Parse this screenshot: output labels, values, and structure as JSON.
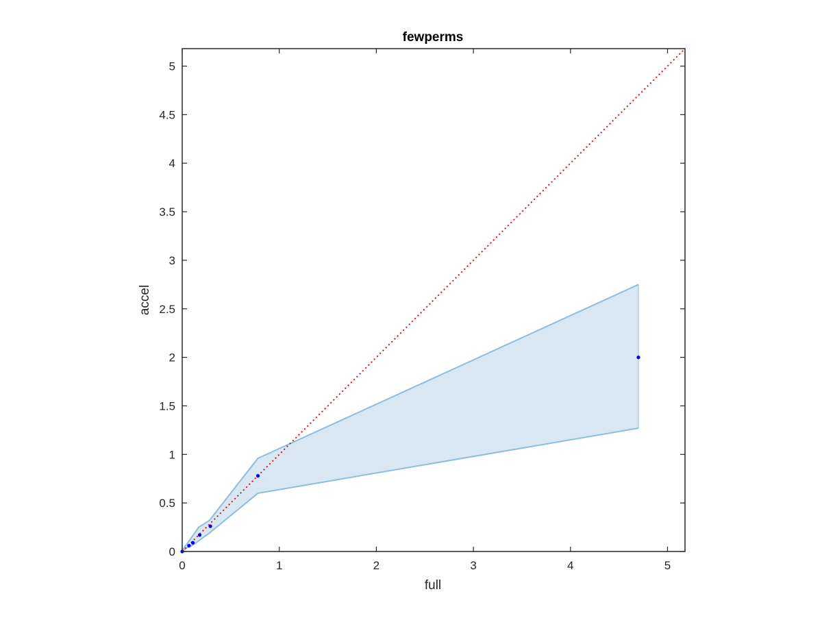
{
  "chart_data": {
    "type": "line",
    "title": "fewperms",
    "xlabel": "full",
    "ylabel": "accel",
    "xlim": [
      0,
      5.18
    ],
    "ylim": [
      0,
      5.18
    ],
    "xticks": [
      "0",
      "1",
      "2",
      "3",
      "4",
      "5"
    ],
    "xtick_values": [
      0,
      1,
      2,
      3,
      4,
      5
    ],
    "yticks": [
      "0",
      "0.5",
      "1",
      "1.5",
      "2",
      "2.5",
      "3",
      "3.5",
      "4",
      "4.5",
      "5"
    ],
    "ytick_values": [
      0,
      0.5,
      1,
      1.5,
      2,
      2.5,
      3,
      3.5,
      4,
      4.5,
      5
    ],
    "grid": false,
    "series": [
      {
        "kind": "band",
        "color": "#8bbde0",
        "fill": "#d9e7f3",
        "x": [
          0,
          0.05,
          0.1,
          0.17,
          0.28,
          0.78,
          4.7
        ],
        "upper": [
          0.01,
          0.08,
          0.15,
          0.25,
          0.32,
          0.96,
          2.75
        ],
        "lower": [
          0,
          0.04,
          0.06,
          0.11,
          0.19,
          0.6,
          1.27
        ]
      },
      {
        "kind": "points",
        "color": "#0000ff",
        "x": [
          0,
          0.07,
          0.11,
          0.18,
          0.29,
          0.78,
          4.7
        ],
        "y": [
          0,
          0.06,
          0.09,
          0.17,
          0.26,
          0.78,
          2.0
        ]
      },
      {
        "kind": "reference-line",
        "color": "#ff0000",
        "style": "dotted",
        "x": [
          0,
          5.18
        ],
        "y": [
          0,
          5.18
        ]
      }
    ]
  }
}
